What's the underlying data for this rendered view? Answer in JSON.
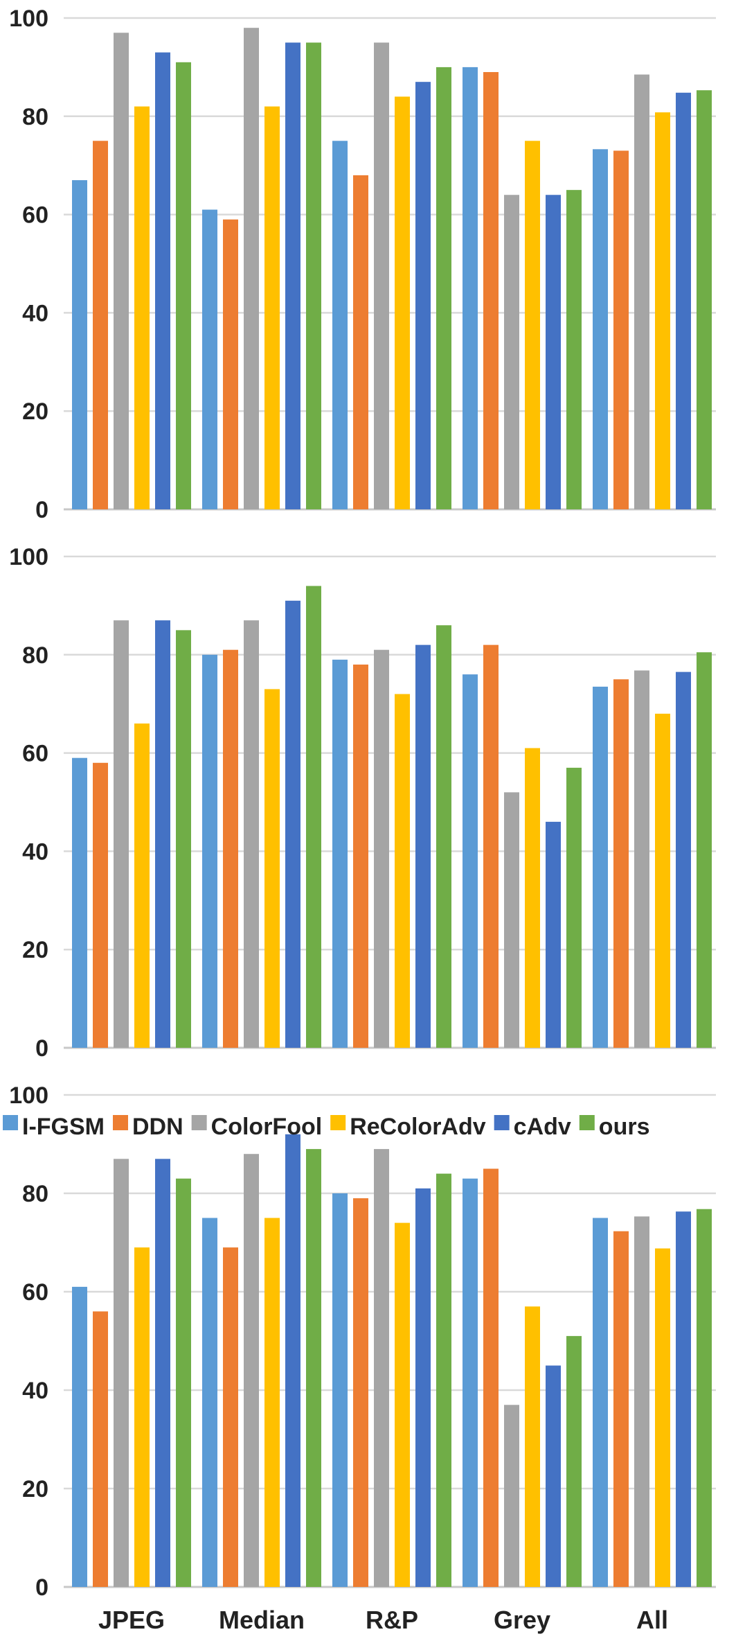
{
  "chart_data": [
    {
      "type": "bar",
      "categories": [
        "JPEG",
        "Median",
        "R&P",
        "Grey",
        "All"
      ],
      "series": [
        {
          "name": "I-FGSM",
          "values": [
            67,
            61,
            75,
            90,
            73.3
          ]
        },
        {
          "name": "DDN",
          "values": [
            75,
            59,
            68,
            89,
            73
          ]
        },
        {
          "name": "ColorFool",
          "values": [
            97,
            98,
            95,
            64,
            88.5
          ]
        },
        {
          "name": "ReColorAdv",
          "values": [
            82,
            82,
            84,
            75,
            80.8
          ]
        },
        {
          "name": "cAdv",
          "values": [
            93,
            95,
            87,
            64,
            84.8
          ]
        },
        {
          "name": "ours",
          "values": [
            91,
            95,
            90,
            65,
            85.3
          ]
        }
      ],
      "yticks": [
        0,
        20,
        40,
        60,
        80,
        100
      ],
      "ylim": [
        0,
        100
      ],
      "grid": true
    },
    {
      "type": "bar",
      "categories": [
        "JPEG",
        "Median",
        "R&P",
        "Grey",
        "All"
      ],
      "series": [
        {
          "name": "I-FGSM",
          "values": [
            59,
            80,
            79,
            76,
            73.5
          ]
        },
        {
          "name": "DDN",
          "values": [
            58,
            81,
            78,
            82,
            75
          ]
        },
        {
          "name": "ColorFool",
          "values": [
            87,
            87,
            81,
            52,
            76.8
          ]
        },
        {
          "name": "ReColorAdv",
          "values": [
            66,
            73,
            72,
            61,
            68
          ]
        },
        {
          "name": "cAdv",
          "values": [
            87,
            91,
            82,
            46,
            76.5
          ]
        },
        {
          "name": "ours",
          "values": [
            85,
            94,
            86,
            57,
            80.5
          ]
        }
      ],
      "yticks": [
        0,
        20,
        40,
        60,
        80,
        100
      ],
      "ylim": [
        0,
        100
      ],
      "grid": true
    },
    {
      "type": "bar",
      "categories": [
        "JPEG",
        "Median",
        "R&P",
        "Grey",
        "All"
      ],
      "series": [
        {
          "name": "I-FGSM",
          "values": [
            61,
            75,
            80,
            83,
            75
          ]
        },
        {
          "name": "DDN",
          "values": [
            56,
            69,
            79,
            85,
            72.3
          ]
        },
        {
          "name": "ColorFool",
          "values": [
            87,
            88,
            89,
            37,
            75.3
          ]
        },
        {
          "name": "ReColorAdv",
          "values": [
            69,
            75,
            74,
            57,
            68.8
          ]
        },
        {
          "name": "cAdv",
          "values": [
            87,
            92,
            81,
            45,
            76.3
          ]
        },
        {
          "name": "ours",
          "values": [
            83,
            89,
            84,
            51,
            76.8
          ]
        }
      ],
      "yticks": [
        0,
        20,
        40,
        60,
        80,
        100
      ],
      "ylim": [
        0,
        100
      ],
      "grid": true,
      "legend": {
        "position": "top",
        "items": [
          "I-FGSM",
          "DDN",
          "ColorFool",
          "ReColorAdv",
          "cAdv",
          "ours"
        ]
      }
    }
  ],
  "colors": {
    "series": [
      "#5b9bd5",
      "#ed7d31",
      "#a5a5a5",
      "#ffc000",
      "#4472c4",
      "#70ad47"
    ],
    "grid": "#d9d9d9"
  }
}
